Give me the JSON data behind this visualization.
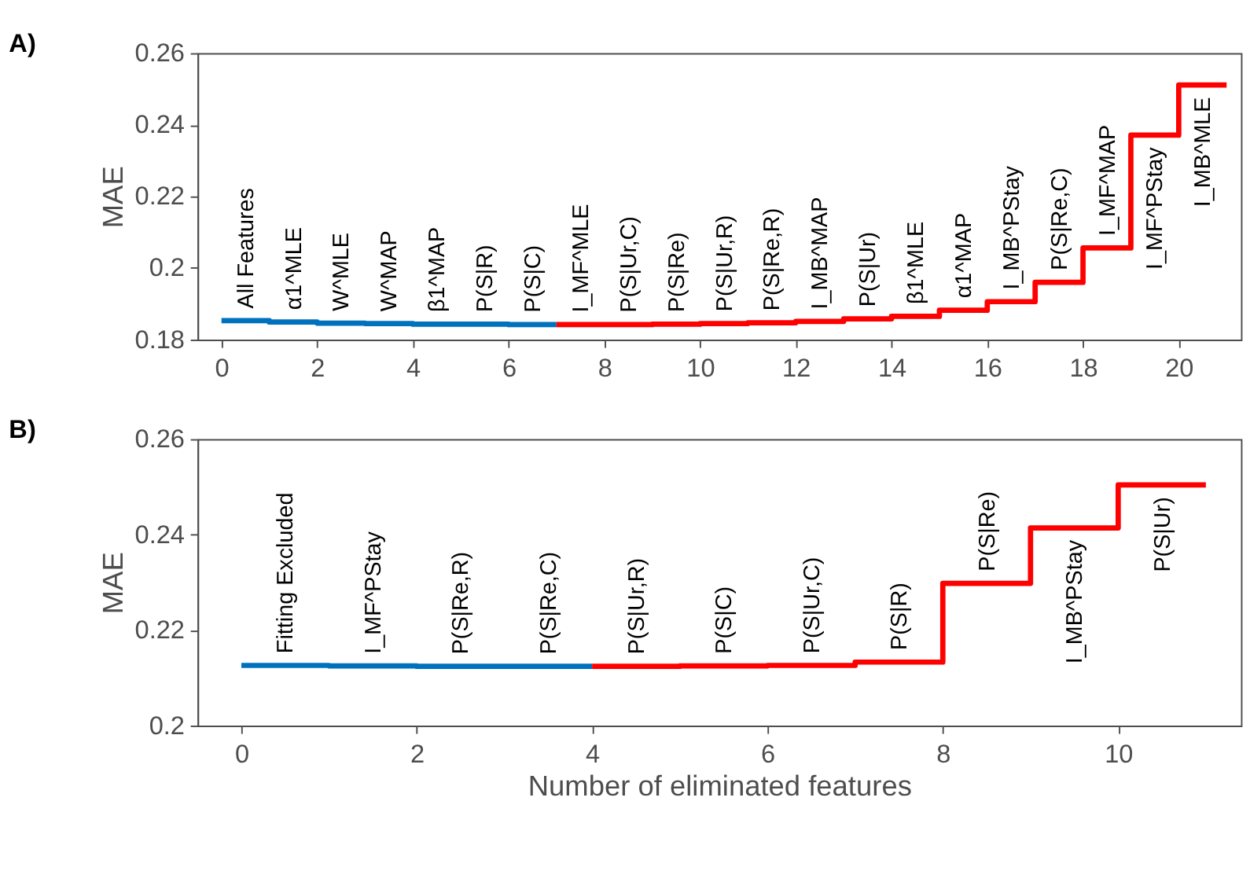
{
  "chart_data": [
    {
      "type": "step",
      "title": "A)",
      "ylabel": "MAE",
      "xlim": [
        -0.5,
        21.3
      ],
      "xticks": [
        0,
        2,
        4,
        6,
        8,
        10,
        12,
        14,
        16,
        18,
        20
      ],
      "ylim": [
        0.18,
        0.26
      ],
      "yticks": [
        0.18,
        0.2,
        0.22,
        0.24,
        0.26
      ],
      "grid": false,
      "series": [
        {
          "color": "#0072bd",
          "x": [
            0,
            1,
            2,
            3,
            4,
            5,
            6,
            7
          ],
          "values": [
            0.1853,
            0.1849,
            0.1846,
            0.1845,
            0.1843,
            0.1843,
            0.1842,
            0.1842
          ]
        },
        {
          "color": "#ff0000",
          "x": [
            7,
            8,
            9,
            10,
            11,
            12,
            13,
            14,
            15,
            16,
            17,
            18,
            19,
            20,
            21
          ],
          "values": [
            0.1842,
            0.1842,
            0.1843,
            0.1845,
            0.1847,
            0.1851,
            0.1858,
            0.1865,
            0.1882,
            0.1906,
            0.196,
            0.2056,
            0.2371,
            0.2511,
            0.2511
          ]
        }
      ],
      "annotations": [
        {
          "text": "All Features",
          "x": 0.5,
          "y": 0.1853
        },
        {
          "text": "α1^MLE",
          "x": 1.5,
          "y": 0.1849
        },
        {
          "text": "W^MLE",
          "x": 2.5,
          "y": 0.1846
        },
        {
          "text": "W^MAP",
          "x": 3.5,
          "y": 0.1845
        },
        {
          "text": "β1^MAP",
          "x": 4.5,
          "y": 0.1843
        },
        {
          "text": "P(S|R)",
          "x": 5.5,
          "y": 0.1843
        },
        {
          "text": "P(S|C)",
          "x": 6.5,
          "y": 0.1842
        },
        {
          "text": "I_MF^MLE",
          "x": 7.5,
          "y": 0.1842
        },
        {
          "text": "P(S|Ur,C)",
          "x": 8.5,
          "y": 0.1842
        },
        {
          "text": "P(S|Re)",
          "x": 9.5,
          "y": 0.1843
        },
        {
          "text": "P(S|Ur,R)",
          "x": 10.5,
          "y": 0.1845
        },
        {
          "text": "P(S|Re,R)",
          "x": 11.5,
          "y": 0.1847
        },
        {
          "text": "I_MB^MAP",
          "x": 12.5,
          "y": 0.1851
        },
        {
          "text": "P(S|Ur)",
          "x": 13.5,
          "y": 0.1858
        },
        {
          "text": "β1^MLE",
          "x": 14.5,
          "y": 0.1865
        },
        {
          "text": "α1^MAP",
          "x": 15.5,
          "y": 0.1882
        },
        {
          "text": "I_MB^PStay",
          "x": 16.5,
          "y": 0.1906
        },
        {
          "text": "P(S|Re,C)",
          "x": 17.5,
          "y": 0.196
        },
        {
          "text": "I_MF^MAP",
          "x": 18.5,
          "y": 0.2056
        },
        {
          "text": "I_MF^PStay",
          "x": 19.5,
          "y": 0.2371
        },
        {
          "text": "I_MB^MLE",
          "x": 20.5,
          "y": 0.2511
        }
      ]
    },
    {
      "type": "step",
      "title": "B)",
      "xlabel": "Number of eliminated features",
      "ylabel": "MAE",
      "xlim": [
        -0.5,
        11.4
      ],
      "xticks": [
        0,
        2,
        4,
        6,
        8,
        10
      ],
      "ylim": [
        0.2,
        0.26
      ],
      "yticks": [
        0.2,
        0.22,
        0.24,
        0.26
      ],
      "grid": false,
      "series": [
        {
          "color": "#0072bd",
          "x": [
            0,
            1,
            2,
            3,
            4
          ],
          "values": [
            0.2126,
            0.2125,
            0.2124,
            0.2124,
            0.2124
          ]
        },
        {
          "color": "#ff0000",
          "x": [
            4,
            5,
            6,
            7,
            8,
            9,
            10,
            11
          ],
          "values": [
            0.2124,
            0.2125,
            0.2126,
            0.2133,
            0.2298,
            0.2414,
            0.2504,
            0.2504
          ]
        }
      ],
      "annotations": [
        {
          "text": "Fitting Excluded",
          "x": 0.5,
          "y": 0.2126
        },
        {
          "text": "I_MF^PStay",
          "x": 1.5,
          "y": 0.2125
        },
        {
          "text": "P(S|Re,R)",
          "x": 2.5,
          "y": 0.2124
        },
        {
          "text": "P(S|Re,C)",
          "x": 3.5,
          "y": 0.2124
        },
        {
          "text": "P(S|Ur,R)",
          "x": 4.5,
          "y": 0.2124
        },
        {
          "text": "P(S|C)",
          "x": 5.5,
          "y": 0.2125
        },
        {
          "text": "P(S|Ur,C)",
          "x": 6.5,
          "y": 0.2126
        },
        {
          "text": "P(S|R)",
          "x": 7.5,
          "y": 0.2133
        },
        {
          "text": "P(S|Re)",
          "x": 8.5,
          "y": 0.2298
        },
        {
          "text": "I_MB^PStay",
          "x": 9.5,
          "y": 0.2414
        },
        {
          "text": "P(S|Ur)",
          "x": 10.5,
          "y": 0.2504
        }
      ]
    }
  ]
}
